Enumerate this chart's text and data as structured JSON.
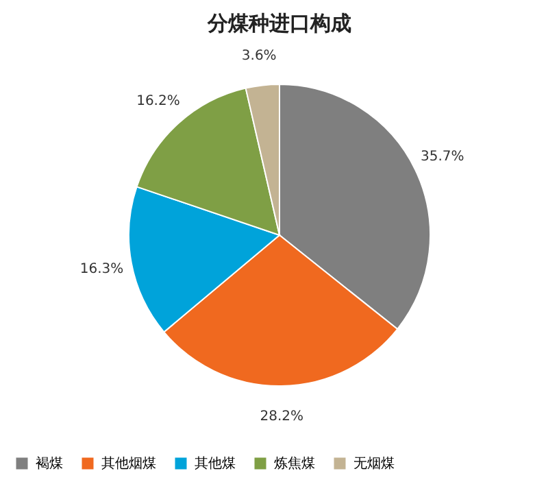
{
  "chart_data": {
    "type": "pie",
    "title": "分煤种进口构成",
    "categories": [
      "褐煤",
      "其他烟煤",
      "其他煤",
      "炼焦煤",
      "无烟煤"
    ],
    "values": [
      35.7,
      28.2,
      16.3,
      16.2,
      3.6
    ],
    "colors": [
      "#7f7f7f",
      "#f0691f",
      "#00a3da",
      "#7f9f45",
      "#c3b393"
    ],
    "value_labels": [
      "35.7%",
      "28.2%",
      "16.3%",
      "16.2%",
      "3.6%"
    ],
    "legend": "bottom"
  }
}
